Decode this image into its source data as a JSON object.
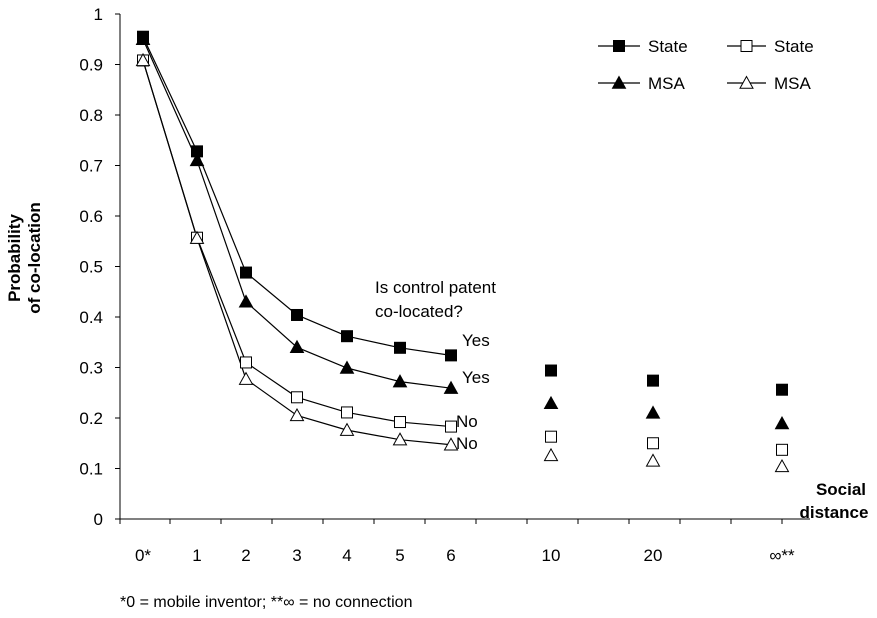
{
  "chart_data": {
    "type": "line",
    "categories": [
      "0*",
      "1",
      "2",
      "3",
      "4",
      "5",
      "6",
      "10",
      "20",
      "∞**"
    ],
    "ylabel_lines": [
      "Probability",
      "of co-location"
    ],
    "xlabel_lines": [
      "Social",
      "distance"
    ],
    "ylim": [
      0,
      1
    ],
    "y_ticks": [
      "0",
      "0.1",
      "0.2",
      "0.3",
      "0.4",
      "0.5",
      "0.6",
      "0.7",
      "0.8",
      "0.9",
      "1"
    ],
    "grid": false,
    "legend_position": "top-right",
    "series": [
      {
        "name": "State",
        "marker": "filled-square",
        "values": [
          0.955,
          0.728,
          0.488,
          0.404,
          0.362,
          0.339,
          0.324,
          0.294,
          0.274,
          0.256
        ]
      },
      {
        "name": "MSA",
        "marker": "filled-triangle",
        "values": [
          0.95,
          0.71,
          0.43,
          0.34,
          0.299,
          0.272,
          0.259,
          0.229,
          0.21,
          0.189
        ]
      },
      {
        "name": "State",
        "marker": "open-square",
        "values": [
          0.908,
          0.557,
          0.31,
          0.241,
          0.211,
          0.192,
          0.183,
          0.163,
          0.15,
          0.137
        ]
      },
      {
        "name": "MSA",
        "marker": "open-triangle",
        "values": [
          0.908,
          0.556,
          0.277,
          0.205,
          0.176,
          0.157,
          0.147,
          0.126,
          0.115,
          0.104
        ]
      }
    ],
    "annotations": {
      "question_lines": [
        "Is control patent",
        "co-located?"
      ],
      "labels": [
        "Yes",
        "Yes",
        "No",
        "No"
      ]
    },
    "footnote": "*0 = mobile inventor; **∞ = no connection"
  }
}
